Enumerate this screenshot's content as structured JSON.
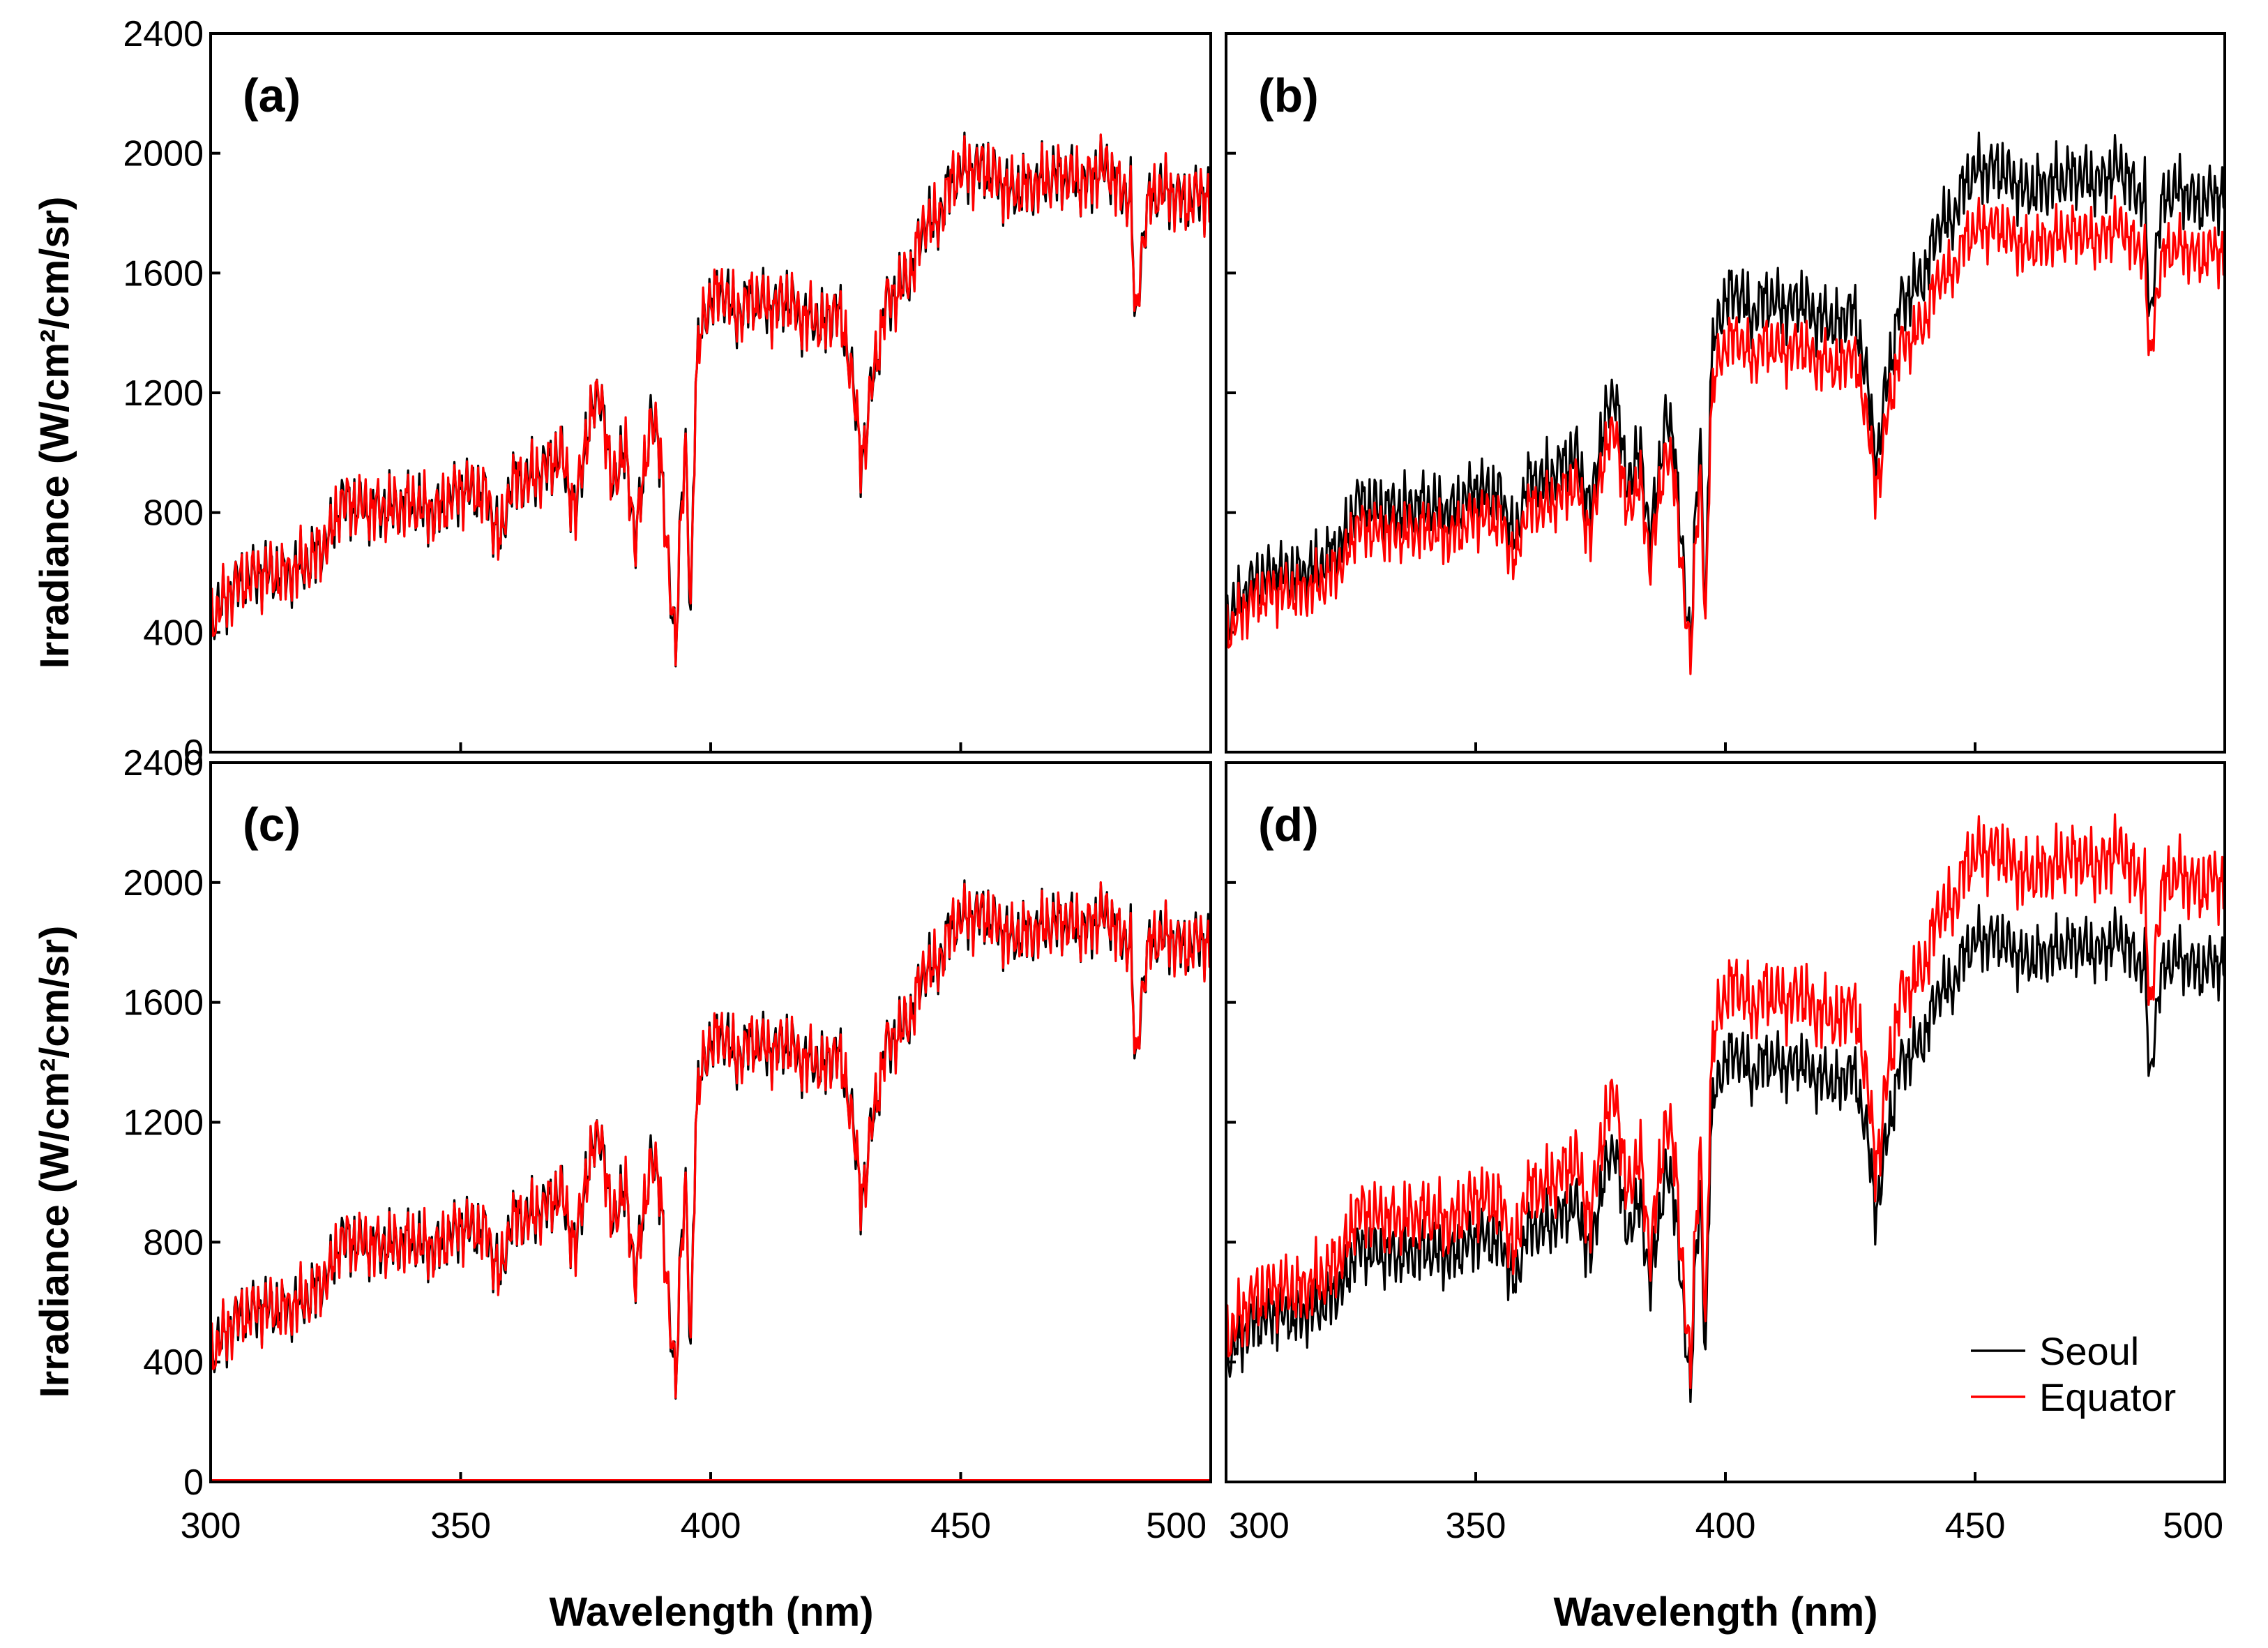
{
  "chart_data": {
    "type": "line",
    "xlabel": "Wavelength (nm)",
    "ylabel": "Irradiance (W/cm²/cm/sr)",
    "xlim": [
      300,
      500
    ],
    "ylim": [
      0,
      2400
    ],
    "xticks": [
      300,
      350,
      400,
      450,
      500
    ],
    "yticks": [
      0,
      400,
      800,
      1200,
      1600,
      2000,
      2400
    ],
    "grid": false,
    "legend": {
      "position": "bottom-right",
      "panel": "(d)",
      "entries": [
        {
          "name": "Seoul",
          "color": "#000000"
        },
        {
          "name": "Equator",
          "color": "#ff0000"
        }
      ]
    },
    "reference_spectrum": {
      "x": [
        300,
        305,
        310,
        315,
        320,
        324,
        326,
        330,
        335,
        340,
        345,
        350,
        355,
        358,
        360,
        365,
        370,
        373,
        375,
        378,
        380,
        383,
        385,
        388,
        390,
        392,
        393,
        394,
        395,
        396,
        397,
        398,
        400,
        403,
        405,
        408,
        410,
        413,
        415,
        418,
        420,
        423,
        425,
        428,
        430,
        431,
        432,
        435,
        438,
        440,
        443,
        445,
        448,
        450,
        455,
        460,
        465,
        470,
        475,
        478,
        480,
        482,
        484,
        485,
        486,
        487,
        488,
        490,
        493,
        495,
        498,
        500
      ],
      "y": [
        440,
        560,
        600,
        590,
        640,
        720,
        840,
        820,
        810,
        830,
        800,
        880,
        860,
        700,
        900,
        920,
        1000,
        800,
        1050,
        1220,
        900,
        1000,
        700,
        1120,
        1000,
        500,
        350,
        800,
        1000,
        450,
        1250,
        1400,
        1520,
        1540,
        1450,
        1520,
        1500,
        1480,
        1520,
        1450,
        1450,
        1420,
        1500,
        1300,
        980,
        1050,
        1200,
        1500,
        1550,
        1600,
        1780,
        1760,
        1900,
        1940,
        1950,
        1870,
        1900,
        1930,
        1900,
        1950,
        1940,
        1870,
        1860,
        1400,
        1650,
        1780,
        1850,
        1880,
        1860,
        1830,
        1870,
        1840
      ]
    },
    "panels": [
      {
        "label": "(a)",
        "series": [
          {
            "name": "Seoul",
            "scale": 1.0
          },
          {
            "name": "Equator",
            "scale": 1.0
          }
        ]
      },
      {
        "label": "(b)",
        "series": [
          {
            "name": "Seoul",
            "scale": 1.0
          },
          {
            "name": "Equator",
            "scale": 0.9
          }
        ]
      },
      {
        "label": "(c)",
        "series": [
          {
            "name": "Seoul",
            "scale": 0.97
          },
          {
            "name": "Equator",
            "scale": 0.97
          }
        ]
      },
      {
        "label": "(d)",
        "series": [
          {
            "name": "Seoul",
            "scale": 0.93
          },
          {
            "name": "Equator",
            "scale": 1.08
          }
        ]
      }
    ]
  }
}
